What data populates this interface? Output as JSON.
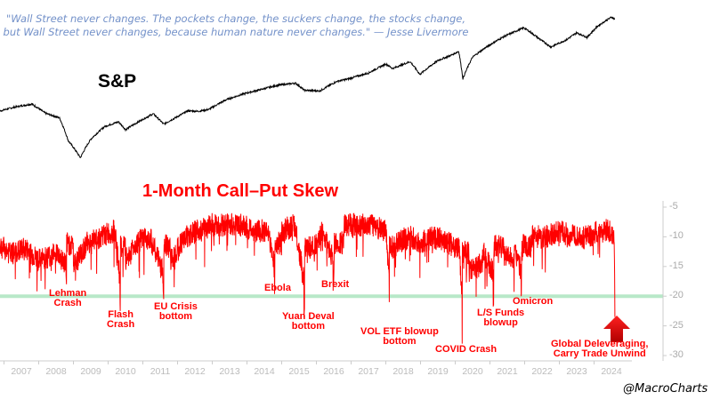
{
  "chart_data": [
    {
      "type": "line",
      "title": "S&P",
      "scale": "log",
      "x": [
        2006.4,
        2006.8,
        2007.3,
        2007.8,
        2008.2,
        2008.6,
        2008.85,
        2009.2,
        2009.5,
        2009.9,
        2010.3,
        2010.5,
        2010.9,
        2011.3,
        2011.6,
        2011.9,
        2012.3,
        2012.6,
        2012.9,
        2013.4,
        2013.9,
        2014.4,
        2014.9,
        2015.4,
        2015.65,
        2016.1,
        2016.6,
        2016.9,
        2017.5,
        2018.0,
        2018.2,
        2018.7,
        2018.98,
        2019.5,
        2019.9,
        2020.1,
        2020.22,
        2020.5,
        2020.9,
        2021.4,
        2021.98,
        2022.4,
        2022.75,
        2023.2,
        2023.5,
        2023.8,
        2024.1,
        2024.5,
        2024.6
      ],
      "values": [
        1270,
        1380,
        1480,
        1550,
        1350,
        1260,
        900,
        700,
        920,
        1110,
        1190,
        1060,
        1200,
        1340,
        1150,
        1250,
        1400,
        1390,
        1430,
        1650,
        1800,
        1920,
        2050,
        2110,
        1900,
        1880,
        2170,
        2240,
        2450,
        2800,
        2620,
        2900,
        2400,
        2950,
        3200,
        3380,
        2250,
        3100,
        3600,
        4200,
        4790,
        4100,
        3600,
        4000,
        4450,
        4150,
        4900,
        5600,
        5450
      ]
    },
    {
      "type": "line",
      "title": "1-Month Call–Put Skew",
      "ylim": [
        -30,
        -5
      ],
      "yticks": [
        -5,
        -10,
        -15,
        -20,
        -25,
        -30
      ],
      "xticks": [
        "2007",
        "2008",
        "2009",
        "2010",
        "2011",
        "2012",
        "2013",
        "2014",
        "2015",
        "2016",
        "2017",
        "2018",
        "2019",
        "2020",
        "2021",
        "2022",
        "2023",
        "2024"
      ],
      "reference_line": -20,
      "x": [
        2006.4,
        2006.8,
        2007.2,
        2007.6,
        2008.0,
        2008.4,
        2008.8,
        2009.0,
        2009.4,
        2009.8,
        2010.2,
        2010.35,
        2010.5,
        2010.8,
        2011.2,
        2011.6,
        2011.8,
        2012.2,
        2012.6,
        2013.0,
        2013.4,
        2013.8,
        2014.2,
        2014.6,
        2014.8,
        2015.0,
        2015.4,
        2015.65,
        2015.9,
        2016.2,
        2016.5,
        2016.8,
        2017.2,
        2017.6,
        2018.0,
        2018.1,
        2018.3,
        2018.7,
        2019.0,
        2019.4,
        2019.8,
        2020.1,
        2020.2,
        2020.4,
        2020.8,
        2021.1,
        2021.4,
        2021.7,
        2021.9,
        2022.2,
        2022.6,
        2023.0,
        2023.4,
        2023.8,
        2024.2,
        2024.5,
        2024.58,
        2024.6
      ],
      "values": [
        -10,
        -11,
        -13,
        -12,
        -14,
        -13,
        -18,
        -15,
        -11,
        -10,
        -9,
        -22.5,
        -14,
        -11,
        -10,
        -20.5,
        -14,
        -10,
        -9,
        -8,
        -8,
        -8,
        -9,
        -9,
        -17.5,
        -9,
        -8,
        -22.5,
        -12,
        -9,
        -17,
        -8,
        -8,
        -8,
        -9,
        -21,
        -11,
        -10,
        -11,
        -10,
        -11,
        -12,
        -28,
        -16,
        -14,
        -20.5,
        -13,
        -14,
        -20,
        -10,
        -10,
        -9,
        -10,
        -10,
        -9,
        -9,
        -11,
        -23.5
      ]
    }
  ],
  "quote_line1": "\"Wall Street never changes. The pockets change, the suckers change, the stocks change,",
  "quote_line2": "but Wall Street never changes, because human nature never changes.\" — Jesse Livermore",
  "sp_label": "S&P",
  "skew_title": "1-Month Call–Put Skew",
  "annotations": {
    "lehman": [
      "Lehman",
      "Crash"
    ],
    "flash": [
      "Flash",
      "Crash"
    ],
    "eu": [
      "EU Crisis",
      "bottom"
    ],
    "ebola": [
      "Ebola"
    ],
    "yuan": [
      "Yuan Deval",
      "bottom"
    ],
    "brexit": [
      "Brexit"
    ],
    "vol": [
      "VOL ETF blowup",
      "bottom"
    ],
    "covid": [
      "COVID Crash"
    ],
    "ls": [
      "L/S Funds",
      "blowup"
    ],
    "omicron": [
      "Omicron"
    ],
    "global": [
      "Global Deleveraging,",
      "Carry Trade Unwind"
    ]
  },
  "signature": "@MacroCharts",
  "colors": {
    "sp": "#000000",
    "skew": "#ff0000",
    "ref": "#b8e8c8",
    "quote": "#7391c9"
  }
}
